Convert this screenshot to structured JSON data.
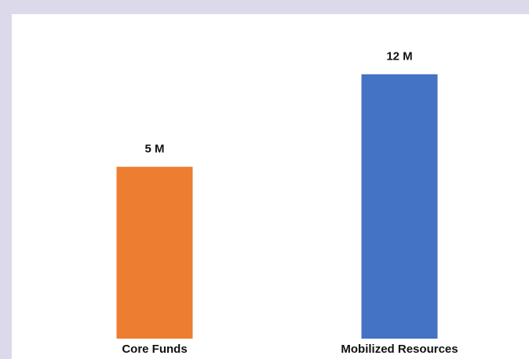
{
  "chart_data": {
    "type": "bar",
    "categories": [
      "Core Funds",
      "Mobilized Resources"
    ],
    "values": [
      5,
      12
    ],
    "value_labels": [
      "5 M",
      "12 M"
    ],
    "colors": [
      "#ed7d31",
      "#4472c4"
    ],
    "ylim": [
      -8,
      14
    ]
  }
}
